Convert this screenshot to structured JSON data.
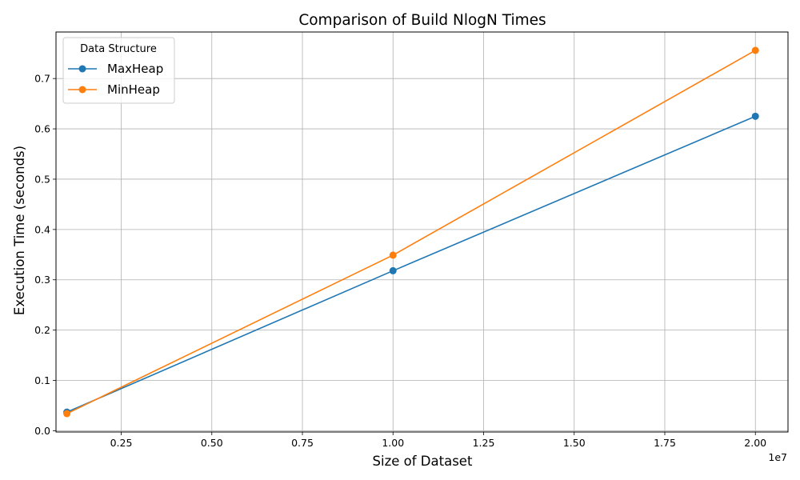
{
  "chart_data": {
    "type": "line",
    "title": "Comparison of Build NlogN Times",
    "xlabel": "Size of Dataset",
    "ylabel": "Execution Time (seconds)",
    "x_offset_label": "1e7",
    "xlim": [
      0.07,
      2.09
    ],
    "ylim": [
      -0.0025,
      0.7925
    ],
    "x_ticks": [
      0.25,
      0.5,
      0.75,
      1.0,
      1.25,
      1.5,
      1.75,
      2.0
    ],
    "x_tick_labels": [
      "0.25",
      "0.50",
      "0.75",
      "1.00",
      "1.25",
      "1.50",
      "1.75",
      "2.00"
    ],
    "y_ticks": [
      0.0,
      0.1,
      0.2,
      0.3,
      0.4,
      0.5,
      0.6,
      0.7
    ],
    "y_tick_labels": [
      "0.0",
      "0.1",
      "0.2",
      "0.3",
      "0.4",
      "0.5",
      "0.6",
      "0.7"
    ],
    "grid": true,
    "legend": {
      "title": "Data Structure",
      "position": "top-left"
    },
    "x": [
      0.1,
      1.0,
      2.0
    ],
    "series": [
      {
        "name": "MaxHeap",
        "color": "#1f77b4",
        "values": [
          0.037,
          0.318,
          0.625
        ]
      },
      {
        "name": "MinHeap",
        "color": "#ff7f0e",
        "values": [
          0.034,
          0.349,
          0.756
        ]
      }
    ]
  }
}
